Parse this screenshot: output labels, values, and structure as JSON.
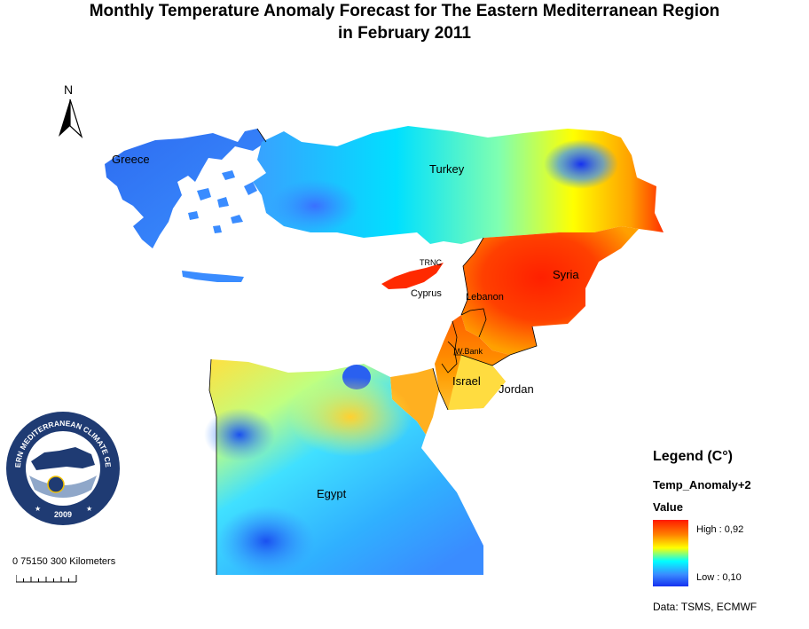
{
  "title_line1": "Monthly Temperature Anomaly Forecast for  The Eastern Mediterranean Region",
  "title_line2": "in February 2011",
  "north_label": "N",
  "countries": {
    "greece": "Greece",
    "turkey": "Turkey",
    "trnc": "TRNC",
    "cyprus": "Cyprus",
    "syria": "Syria",
    "lebanon": "Lebanon",
    "wbank": "W.Bank",
    "israel": "Israel",
    "jordan": "Jordan",
    "egypt": "Egypt"
  },
  "scale": {
    "label": "0  75150   300 Kilometers"
  },
  "logo": {
    "ring_text": "EASTERN MEDITERRANEAN CLIMATE CENTRE",
    "year": "2009"
  },
  "legend": {
    "title": "Legend (C°)",
    "field": "Temp_Anomaly+2",
    "value_label": "Value",
    "high": "High : 0,92",
    "low": "Low : 0,10"
  },
  "source": "Data:  TSMS, ECMWF",
  "colors": {
    "high": "#ff1a00",
    "mid_high": "#ff8000",
    "mid": "#ffff00",
    "mid_low": "#00ffff",
    "low": "#1530f0"
  }
}
